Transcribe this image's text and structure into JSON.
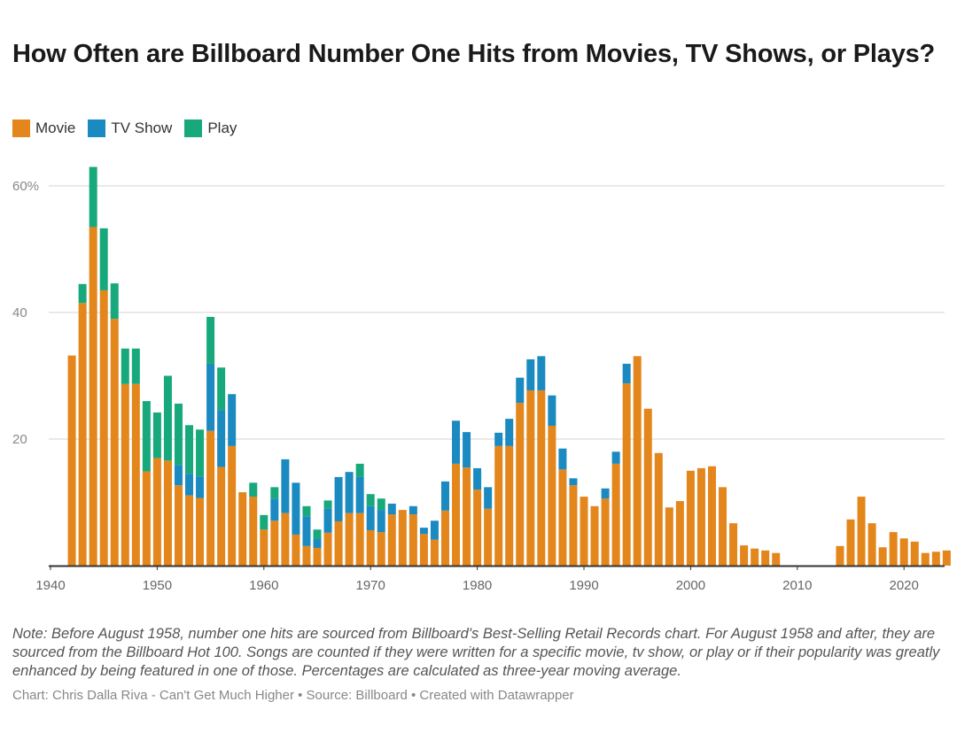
{
  "chart_data": {
    "type": "bar",
    "stacked": true,
    "title": "How Often are Billboard Number One Hits from Movies, TV Shows, or Plays?",
    "xlabel": "",
    "ylabel": "",
    "ylim": [
      0,
      65
    ],
    "yticks": [
      {
        "value": 20,
        "label": "20"
      },
      {
        "value": 40,
        "label": "40"
      },
      {
        "value": 60,
        "label": "60%"
      }
    ],
    "xticks": [
      1940,
      1950,
      1960,
      1970,
      1980,
      1990,
      2000,
      2010,
      2020
    ],
    "grid": true,
    "legend_placement": "top-left",
    "colors": {
      "Movie": "#e3861c",
      "TV Show": "#1a8ac0",
      "Play": "#17a97b"
    },
    "x": [
      1942,
      1943,
      1944,
      1945,
      1946,
      1947,
      1948,
      1949,
      1950,
      1951,
      1952,
      1953,
      1954,
      1955,
      1956,
      1957,
      1958,
      1959,
      1960,
      1961,
      1962,
      1963,
      1964,
      1965,
      1966,
      1967,
      1968,
      1969,
      1970,
      1971,
      1972,
      1973,
      1974,
      1975,
      1976,
      1977,
      1978,
      1979,
      1980,
      1981,
      1982,
      1983,
      1984,
      1985,
      1986,
      1987,
      1988,
      1989,
      1990,
      1991,
      1992,
      1993,
      1994,
      1995,
      1996,
      1997,
      1998,
      1999,
      2000,
      2001,
      2002,
      2003,
      2004,
      2005,
      2006,
      2007,
      2008,
      2009,
      2010,
      2011,
      2012,
      2013,
      2014,
      2015,
      2016,
      2017,
      2018,
      2019,
      2020,
      2021,
      2022,
      2023,
      2024
    ],
    "series": [
      {
        "name": "Movie",
        "values": [
          33.2,
          41.5,
          53.5,
          43.5,
          39,
          28.7,
          28.7,
          14.9,
          17,
          16.6,
          12.7,
          11.1,
          10.7,
          21.3,
          15.6,
          18.9,
          11.6,
          10.9,
          5.7,
          7.1,
          8.3,
          4.9,
          3.1,
          2.8,
          5.2,
          7,
          8.3,
          8.3,
          5.6,
          5.3,
          8.1,
          8.8,
          8.1,
          5,
          4.1,
          8.7,
          16.1,
          15.5,
          12,
          9,
          18.9,
          18.9,
          25.7,
          27.7,
          27.7,
          22.1,
          15.2,
          12.7,
          10.9,
          9.4,
          10.6,
          16.1,
          28.8,
          33.1,
          24.8,
          17.8,
          9.2,
          10.2,
          15,
          15.4,
          15.7,
          12.4,
          6.7,
          3.2,
          2.7,
          2.4,
          2,
          0,
          0,
          0,
          0,
          0,
          3.1,
          7.3,
          10.9,
          6.7,
          2.9,
          5.3,
          4.3,
          3.8,
          2,
          2.2,
          2.4
        ]
      },
      {
        "name": "TV Show",
        "values": [
          0,
          0,
          0,
          0,
          0,
          0,
          0,
          0,
          0,
          0,
          3.2,
          3.4,
          3.4,
          10.6,
          9,
          8.2,
          0,
          0,
          0,
          3.5,
          8.5,
          8.2,
          4.7,
          1.4,
          3.8,
          7,
          6.5,
          5.7,
          3.8,
          3.5,
          1.7,
          0,
          1.3,
          1,
          3,
          4.6,
          6.8,
          5.6,
          3.4,
          3.4,
          2.1,
          4.3,
          4,
          4.9,
          5.4,
          4.8,
          3.3,
          1.1,
          0,
          0,
          1.6,
          1.9,
          3.1,
          0,
          0,
          0,
          0,
          0,
          0,
          0,
          0,
          0,
          0,
          0,
          0,
          0,
          0,
          0,
          0,
          0,
          0,
          0,
          0,
          0,
          0,
          0,
          0,
          0,
          0,
          0,
          0,
          0,
          0
        ]
      },
      {
        "name": "Play",
        "values": [
          0,
          3,
          9.5,
          9.8,
          5.6,
          5.6,
          5.6,
          11.1,
          7.2,
          13.4,
          9.7,
          7.7,
          7.4,
          7.4,
          6.7,
          0,
          0,
          2.2,
          2.3,
          1.8,
          0,
          0,
          1.6,
          1.5,
          1.3,
          0,
          0,
          2.1,
          1.9,
          1.8,
          0,
          0,
          0,
          0,
          0,
          0,
          0,
          0,
          0,
          0,
          0,
          0,
          0,
          0,
          0,
          0,
          0,
          0,
          0,
          0,
          0,
          0,
          0,
          0,
          0,
          0,
          0,
          0,
          0,
          0,
          0,
          0,
          0,
          0,
          0,
          0,
          0,
          0,
          0,
          0,
          0,
          0,
          0,
          0,
          0,
          0,
          0,
          0,
          0,
          0,
          0,
          0,
          0
        ]
      }
    ]
  },
  "header": {
    "title": "How Often are Billboard Number One Hits from Movies, TV Shows, or Plays?",
    "legend": [
      "Movie",
      "TV Show",
      "Play"
    ]
  },
  "footer": {
    "note": "Note: Before August 1958, number one hits are sourced from Billboard's Best-Selling Retail Records chart. For August 1958 and after, they are sourced from the Billboard Hot 100. Songs are counted if they were written for a specific movie, tv show, or play or if their popularity was greatly enhanced by being featured in one of those. Percentages are calculated as three-year moving average.",
    "credit": "Chart: Chris Dalla Riva - Can't Get Much Higher • Source: Billboard • Created with Datawrapper"
  }
}
